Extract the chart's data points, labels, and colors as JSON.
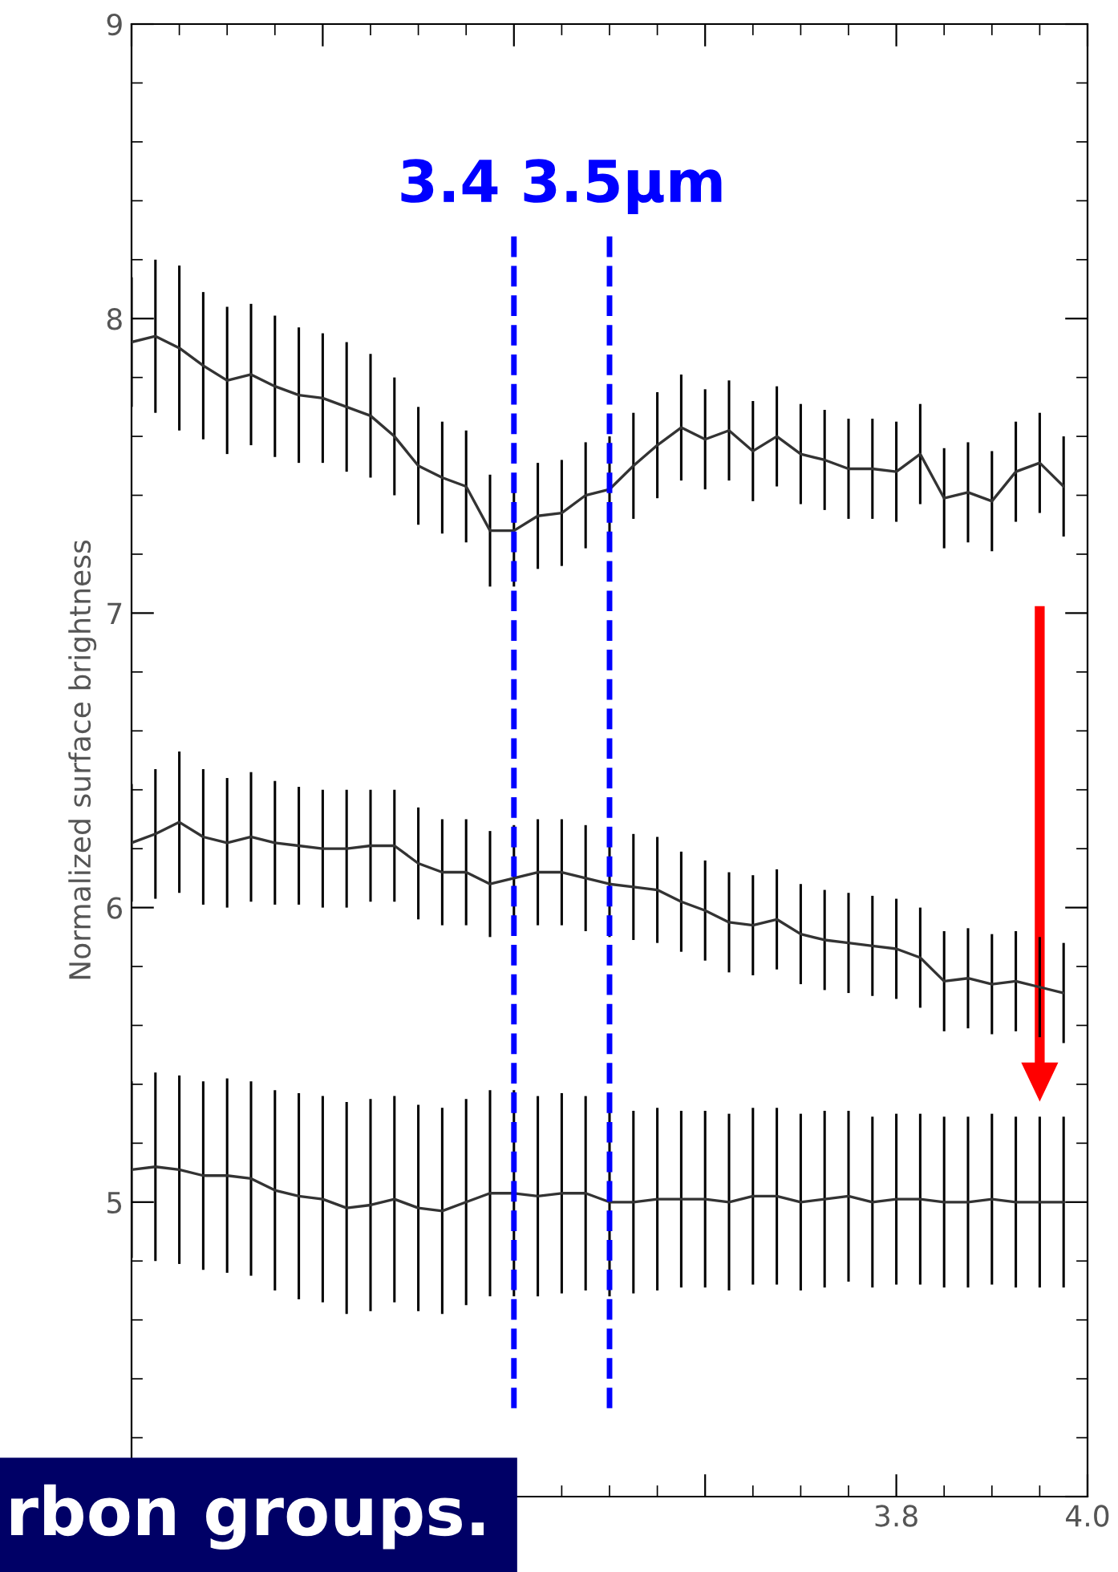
{
  "chart_data": {
    "type": "line",
    "ylabel": "Normalized surface brightness",
    "x": [
      3.0,
      3.025,
      3.05,
      3.075,
      3.1,
      3.125,
      3.15,
      3.175,
      3.2,
      3.225,
      3.25,
      3.275,
      3.3,
      3.325,
      3.35,
      3.375,
      3.4,
      3.425,
      3.45,
      3.475,
      3.5,
      3.525,
      3.55,
      3.575,
      3.6,
      3.625,
      3.65,
      3.675,
      3.7,
      3.725,
      3.75,
      3.775,
      3.8,
      3.825,
      3.85,
      3.875,
      3.9,
      3.925,
      3.95,
      3.975
    ],
    "series": [
      {
        "color": "#333333",
        "values": [
          7.92,
          7.94,
          7.9,
          7.84,
          7.79,
          7.81,
          7.77,
          7.74,
          7.73,
          7.7,
          7.67,
          7.6,
          7.5,
          7.46,
          7.43,
          7.28,
          7.28,
          7.33,
          7.34,
          7.4,
          7.42,
          7.5,
          7.57,
          7.63,
          7.59,
          7.62,
          7.55,
          7.6,
          7.54,
          7.52,
          7.49,
          7.49,
          7.48,
          7.54,
          7.39,
          7.41,
          7.38,
          7.48,
          7.51,
          7.43
        ],
        "errors": [
          0.22,
          0.26,
          0.28,
          0.25,
          0.25,
          0.24,
          0.24,
          0.23,
          0.22,
          0.22,
          0.21,
          0.2,
          0.2,
          0.19,
          0.19,
          0.19,
          0.19,
          0.18,
          0.18,
          0.18,
          0.18,
          0.18,
          0.18,
          0.18,
          0.17,
          0.17,
          0.17,
          0.17,
          0.17,
          0.17,
          0.17,
          0.17,
          0.17,
          0.17,
          0.17,
          0.17,
          0.17,
          0.17,
          0.17,
          0.17
        ]
      },
      {
        "color": "#333333",
        "values": [
          6.22,
          6.25,
          6.29,
          6.24,
          6.22,
          6.24,
          6.22,
          6.21,
          6.2,
          6.2,
          6.21,
          6.21,
          6.15,
          6.12,
          6.12,
          6.08,
          6.1,
          6.12,
          6.12,
          6.1,
          6.08,
          6.07,
          6.06,
          6.02,
          5.99,
          5.95,
          5.94,
          5.96,
          5.91,
          5.89,
          5.88,
          5.87,
          5.86,
          5.83,
          5.75,
          5.76,
          5.74,
          5.75,
          5.73,
          5.71
        ],
        "errors": [
          0.2,
          0.22,
          0.24,
          0.23,
          0.22,
          0.22,
          0.21,
          0.2,
          0.2,
          0.2,
          0.19,
          0.19,
          0.19,
          0.18,
          0.18,
          0.18,
          0.18,
          0.18,
          0.18,
          0.18,
          0.18,
          0.18,
          0.18,
          0.17,
          0.17,
          0.17,
          0.17,
          0.17,
          0.17,
          0.17,
          0.17,
          0.17,
          0.17,
          0.17,
          0.17,
          0.17,
          0.17,
          0.17,
          0.17,
          0.17
        ]
      },
      {
        "color": "#333333",
        "values": [
          5.11,
          5.12,
          5.11,
          5.09,
          5.09,
          5.08,
          5.04,
          5.02,
          5.01,
          4.98,
          4.99,
          5.01,
          4.98,
          4.97,
          5.0,
          5.03,
          5.03,
          5.02,
          5.03,
          5.03,
          5.0,
          5.0,
          5.01,
          5.01,
          5.01,
          5.0,
          5.02,
          5.02,
          5.0,
          5.01,
          5.02,
          5.0,
          5.01,
          5.01,
          5.0,
          5.0,
          5.01,
          5.0,
          5.0,
          5.0
        ],
        "errors": [
          0.3,
          0.32,
          0.32,
          0.32,
          0.33,
          0.33,
          0.34,
          0.35,
          0.35,
          0.36,
          0.36,
          0.35,
          0.35,
          0.35,
          0.35,
          0.35,
          0.35,
          0.34,
          0.34,
          0.33,
          0.32,
          0.31,
          0.31,
          0.3,
          0.3,
          0.3,
          0.3,
          0.3,
          0.3,
          0.3,
          0.29,
          0.29,
          0.29,
          0.29,
          0.29,
          0.29,
          0.29,
          0.29,
          0.29,
          0.29
        ]
      }
    ],
    "xlim": [
      3.0,
      4.0
    ],
    "xticks": [
      {
        "value": 3.0,
        "label": null
      },
      {
        "value": 3.2,
        "label": null
      },
      {
        "value": 3.4,
        "label": null
      },
      {
        "value": 3.6,
        "label": null
      },
      {
        "value": 3.8,
        "label": "3.8"
      },
      {
        "value": 4.0,
        "label": "4.0"
      }
    ],
    "ylim": [
      4.0,
      9.0
    ],
    "yticks": [
      {
        "value": 4.0,
        "label": null
      },
      5,
      6,
      7,
      8,
      9
    ],
    "ref_lines": [
      {
        "axis": "x",
        "value": 3.4,
        "color": "#0000ff",
        "line_style": "dashed"
      },
      {
        "axis": "x",
        "value": 3.5,
        "color": "#0000ff",
        "line_style": "dashed"
      }
    ],
    "annotations": [
      "3.4 3.5μm",
      "rbon groups."
    ],
    "grid": false,
    "legend": false,
    "marker": "none",
    "line_style": "solid"
  }
}
